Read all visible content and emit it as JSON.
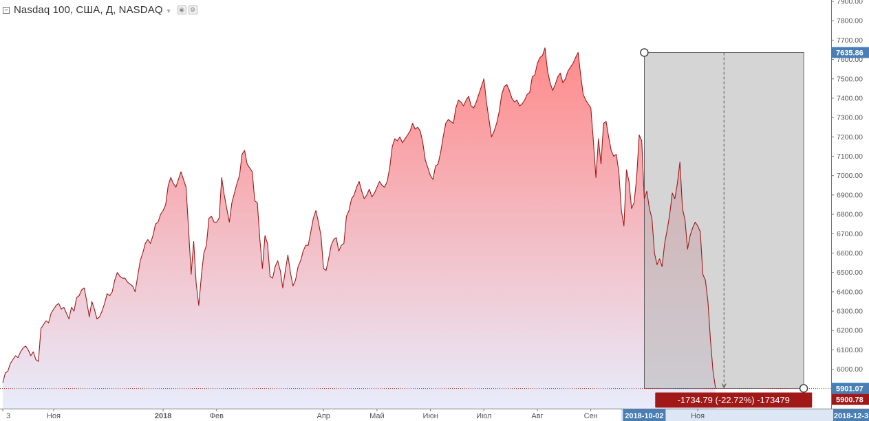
{
  "legend": {
    "title": "Nasdaq 100, США, Д, NASDAQ",
    "caret_icon": "caret-down-icon",
    "eye_icon": "eye-icon",
    "settings_icon": "gear-icon"
  },
  "colors": {
    "line": "#9c1a1a",
    "fill_top": "#ff8a8a",
    "fill_bottom": "#e8ecfb",
    "measure_box": "#b9b9b9",
    "price_label_blue": "#4a7fb5",
    "price_label_red": "#a01818",
    "date_label": "#4a7fb5"
  },
  "y_axis": {
    "min": 5780,
    "max": 7900,
    "ticks": [
      7900,
      7800,
      7700,
      7600,
      7500,
      7400,
      7300,
      7200,
      7100,
      7000,
      6900,
      6800,
      6700,
      6600,
      6500,
      6400,
      6300,
      6200,
      6100,
      6000,
      5900
    ],
    "tick_labels": [
      "7900.00",
      "7800.00",
      "7700.00",
      "7600.00",
      "7500.00",
      "7400.00",
      "7300.00",
      "7200.00",
      "7100.00",
      "7000.00",
      "6900.00",
      "6800.00",
      "6700.00",
      "6600.00",
      "6500.00",
      "6400.00",
      "6300.00",
      "6200.00",
      "6100.00",
      "6000.00",
      "5900.00"
    ],
    "price_labels": [
      {
        "value": 7635.86,
        "text": "7635.86",
        "color": "blue"
      },
      {
        "value": 5901.07,
        "text": "5901.07",
        "color": "blue"
      },
      {
        "value": 5900.78,
        "text": "5900.78",
        "color": "red"
      }
    ]
  },
  "x_axis": {
    "labels": [
      {
        "text": "3",
        "i": 0,
        "bold": false
      },
      {
        "text": "Ноя",
        "i": 20,
        "bold": false
      },
      {
        "text": "2018",
        "i": 63,
        "bold": true
      },
      {
        "text": "Фев",
        "i": 84,
        "bold": false
      },
      {
        "text": "Апр",
        "i": 126,
        "bold": false
      },
      {
        "text": "Май",
        "i": 147,
        "bold": false
      },
      {
        "text": "Июн",
        "i": 168,
        "bold": false
      },
      {
        "text": "Июл",
        "i": 189,
        "bold": false
      },
      {
        "text": "Авг",
        "i": 210,
        "bold": false
      },
      {
        "text": "Сен",
        "i": 231,
        "bold": false
      },
      {
        "text": "Ноя",
        "i": 273,
        "bold": false
      }
    ],
    "highlight_labels": [
      {
        "text": "2018-10-02",
        "i": 252
      },
      {
        "text": "2018-12-3",
        "i": 313
      }
    ]
  },
  "measure": {
    "start_i": 252,
    "end_i": 313,
    "start_value": 7635.86,
    "end_value": 5901.07,
    "label": "-1734.79 (-22.72%) -173479"
  },
  "chart_data": {
    "type": "area",
    "title": "Nasdaq 100, США, Д, NASDAQ",
    "xlabel": "",
    "ylabel": "",
    "ylim": [
      5780,
      7900
    ],
    "grid": false,
    "series": [
      {
        "values": [
          5930,
          5980,
          5990,
          6030,
          6050,
          6070,
          6060,
          6090,
          6110,
          6120,
          6100,
          6070,
          6090,
          6050,
          6040,
          6210,
          6230,
          6250,
          6240,
          6290,
          6310,
          6330,
          6340,
          6310,
          6320,
          6290,
          6260,
          6320,
          6300,
          6370,
          6380,
          6410,
          6420,
          6350,
          6270,
          6350,
          6310,
          6260,
          6270,
          6300,
          6340,
          6390,
          6380,
          6400,
          6460,
          6500,
          6480,
          6470,
          6470,
          6450,
          6440,
          6430,
          6400,
          6480,
          6560,
          6600,
          6650,
          6670,
          6650,
          6690,
          6750,
          6760,
          6800,
          6820,
          6850,
          6950,
          6990,
          6960,
          6940,
          6980,
          7020,
          6980,
          6940,
          6720,
          6490,
          6660,
          6440,
          6330,
          6480,
          6600,
          6640,
          6780,
          6790,
          6760,
          6760,
          6780,
          6990,
          6900,
          6830,
          6760,
          6860,
          6910,
          6960,
          7000,
          7110,
          7130,
          7060,
          7040,
          7020,
          6870,
          6860,
          6670,
          6520,
          6690,
          6650,
          6480,
          6470,
          6530,
          6560,
          6510,
          6420,
          6510,
          6590,
          6500,
          6430,
          6460,
          6530,
          6560,
          6610,
          6640,
          6640,
          6710,
          6780,
          6820,
          6760,
          6690,
          6520,
          6510,
          6570,
          6640,
          6670,
          6680,
          6610,
          6640,
          6650,
          6790,
          6820,
          6880,
          6900,
          6940,
          6970,
          6920,
          6880,
          6900,
          6930,
          6890,
          6910,
          6940,
          6970,
          6950,
          6940,
          6970,
          7040,
          7150,
          7190,
          7180,
          7200,
          7170,
          7190,
          7210,
          7230,
          7270,
          7240,
          7250,
          7230,
          7170,
          7080,
          7040,
          7000,
          6980,
          7050,
          7060,
          7120,
          7200,
          7270,
          7290,
          7280,
          7270,
          7350,
          7390,
          7380,
          7360,
          7390,
          7410,
          7360,
          7350,
          7380,
          7420,
          7460,
          7500,
          7380,
          7290,
          7200,
          7230,
          7270,
          7330,
          7420,
          7460,
          7470,
          7440,
          7400,
          7380,
          7390,
          7360,
          7370,
          7390,
          7420,
          7430,
          7510,
          7520,
          7580,
          7610,
          7620,
          7660,
          7540,
          7480,
          7440,
          7470,
          7510,
          7530,
          7480,
          7500,
          7540,
          7560,
          7580,
          7610,
          7636,
          7520,
          7420,
          7390,
          7370,
          7350,
          7180,
          6990,
          7190,
          7060,
          7270,
          7280,
          7200,
          7130,
          7100,
          7110,
          7020,
          6820,
          6740,
          7030,
          6970,
          6830,
          6860,
          6990,
          7210,
          7180,
          6880,
          6920,
          6830,
          6780,
          6600,
          6540,
          6570,
          6530,
          6650,
          6720,
          6800,
          6910,
          6880,
          6960,
          7070,
          6830,
          6770,
          6620,
          6690,
          6730,
          6760,
          6740,
          6710,
          6490,
          6460,
          6350,
          6150,
          5990,
          5901
        ]
      }
    ]
  }
}
